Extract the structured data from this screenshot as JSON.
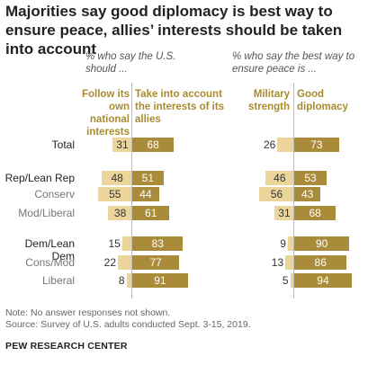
{
  "title": "Majorities say good diplomacy is best way to ensure peace, allies’ interests should be taken into account",
  "colors": {
    "light": "#ecd59a",
    "dark": "#a98b3a",
    "header": "#a98b2f"
  },
  "note": "Note: No answer responses not shown.",
  "source": "Source: Survey of U.S. adults conducted Sept. 3-15, 2019.",
  "brand": "PEW RESEARCH CENTER",
  "chart_data": [
    {
      "type": "bar",
      "subtitle": "% who say the U.S. should ...",
      "categories": [
        "Total",
        "Rep/Lean Rep",
        "Conserv",
        "Mod/Liberal",
        "Dem/Lean Dem",
        "Cons/Mod",
        "Liberal"
      ],
      "series": [
        {
          "name": "Follow its own national interests",
          "values": [
            31,
            48,
            55,
            38,
            15,
            22,
            8
          ]
        },
        {
          "name": "Take into account the interests of its allies",
          "values": [
            68,
            51,
            44,
            61,
            83,
            77,
            91
          ]
        }
      ]
    },
    {
      "type": "bar",
      "subtitle": "% who say the best way to ensure peace is ...",
      "categories": [
        "Total",
        "Rep/Lean Rep",
        "Conserv",
        "Mod/Liberal",
        "Dem/Lean Dem",
        "Cons/Mod",
        "Liberal"
      ],
      "series": [
        {
          "name": "Military strength",
          "values": [
            26,
            46,
            56,
            31,
            9,
            13,
            5
          ]
        },
        {
          "name": "Good diplomacy",
          "values": [
            73,
            53,
            43,
            68,
            90,
            86,
            94
          ]
        }
      ]
    }
  ]
}
